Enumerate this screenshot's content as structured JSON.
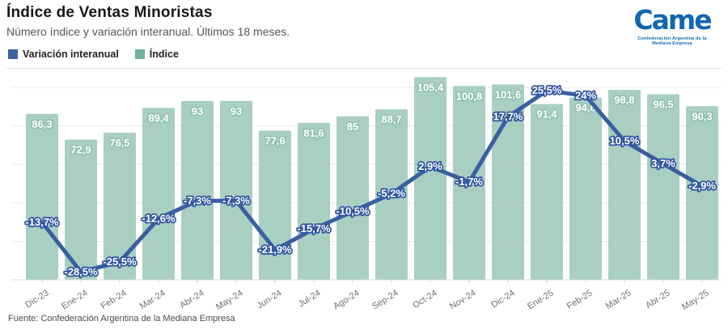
{
  "header": {
    "title": "Índice de Ventas Minoristas",
    "subtitle": "Número índice y variación interanual. Últimos 18 meses."
  },
  "legend": {
    "items": [
      {
        "label": "Variación interanual",
        "color": "#3d639e"
      },
      {
        "label": "Índice",
        "color": "#6fb29a"
      }
    ]
  },
  "logo": {
    "word": "Came",
    "tagline": "Confederación Argentina de la Mediana Empresa",
    "color": "#1266b1"
  },
  "footer": {
    "source": "Fuente: Confederación Argentina de la Mediana Empresa"
  },
  "chart_data": {
    "type": "bar",
    "title": "Índice de Ventas Minoristas",
    "subtitle": "Número índice y variación interanual. Últimos 18 meses.",
    "categories": [
      "Dic-23",
      "Ene-24",
      "Feb-24",
      "Mar-24",
      "Abr-24",
      "May-24",
      "Jun-24",
      "Jul-24",
      "Ago-24",
      "Sep-24",
      "Oct-24",
      "Nov-24",
      "Dic-24",
      "Ene-25",
      "Feb-25",
      "Mar-25",
      "Abr-25",
      "May-25"
    ],
    "series": [
      {
        "name": "Índice",
        "type": "bar",
        "color": "#a8cfc2",
        "label_halo_color": "#8ec0b1",
        "values": [
          86.3,
          72.9,
          76.5,
          89.4,
          93,
          93,
          77.6,
          81.6,
          85,
          88.7,
          105.4,
          100.8,
          101.6,
          91.4,
          94.8,
          98.8,
          96.5,
          90.3
        ]
      },
      {
        "name": "Variación interanual",
        "type": "line",
        "color": "#3a5fa0",
        "unit": "%",
        "values": [
          -13.7,
          -28.5,
          -25.5,
          -12.6,
          -7.3,
          -7.3,
          -21.9,
          -15.7,
          -10.5,
          -5.2,
          2.9,
          -1.7,
          17.7,
          25.5,
          24,
          10.5,
          3.7,
          -2.9
        ]
      }
    ],
    "bar_axis_range": [
      0,
      110
    ],
    "line_axis_range": [
      -32,
      32
    ],
    "grid": true,
    "gridline_step_index_units": 20,
    "legend_position": "top-left",
    "decimal_separator": ",",
    "value_labels_shown": true
  }
}
